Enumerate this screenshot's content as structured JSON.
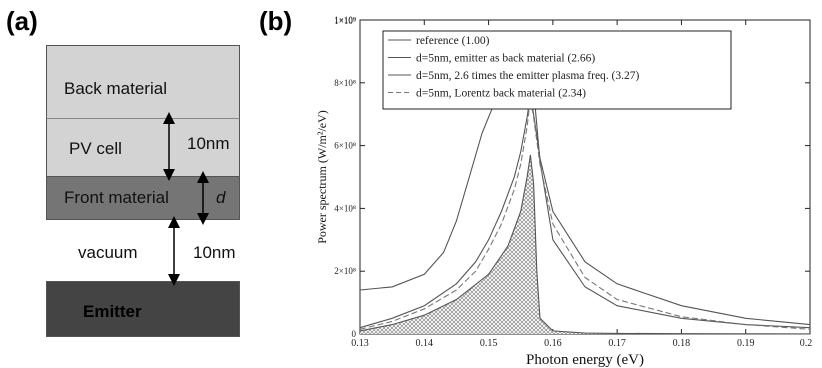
{
  "panel_a": {
    "label": "(a)",
    "layers": {
      "back_material": "Back material",
      "pv_cell": "PV cell",
      "front_material": "Front material",
      "vacuum": "vacuum",
      "emitter": "Emitter"
    },
    "dimensions": {
      "pv_thickness": "10nm",
      "front_thickness": "d",
      "vacuum_gap": "10nm"
    },
    "colors": {
      "back_material": "#d3d3d3",
      "pv_cell": "#d3d3d3",
      "front_material": "#757575",
      "emitter": "#444444"
    }
  },
  "panel_b": {
    "label": "(b)"
  },
  "chart_data": {
    "type": "line",
    "xlabel": "Photon energy (eV)",
    "ylabel": "Power spectrum (W/m²/eV)",
    "xlim": [
      0.13,
      0.2
    ],
    "ylim": [
      0,
      1000000000
    ],
    "x_ticks": [
      "0.13",
      "0.14",
      "0.15",
      "0.16",
      "0.17",
      "0.18",
      "0.19",
      "0.2"
    ],
    "y_ticks": [
      {
        "value": 0,
        "label": "0"
      },
      {
        "value": 200000000,
        "label": "2×10⁸"
      },
      {
        "value": 400000000,
        "label": "4×10⁸"
      },
      {
        "value": 600000000,
        "label": "6×10⁸"
      },
      {
        "value": 800000000,
        "label": "8×10⁸"
      },
      {
        "value": 1000000000,
        "label": "1×10⁹"
      }
    ],
    "top_tick_label": "1×10⁹",
    "legend_position": "top-right",
    "series": [
      {
        "name": "reference (1.00)",
        "style": "solid",
        "color": "#555555",
        "fill_hatched": true,
        "x": [
          0.13,
          0.135,
          0.14,
          0.145,
          0.15,
          0.153,
          0.155,
          0.156,
          0.1565,
          0.157,
          0.1575,
          0.158,
          0.16,
          0.165,
          0.17,
          0.18,
          0.19,
          0.2
        ],
        "y": [
          10000000,
          30000000,
          60000000,
          110000000,
          190000000,
          280000000,
          390000000,
          500000000,
          570000000,
          480000000,
          200000000,
          50000000,
          10000000,
          3000000,
          2000000,
          1000000,
          500000,
          300000
        ]
      },
      {
        "name": "d=5nm, emitter as back material (2.66)",
        "style": "solid",
        "color": "#555555",
        "x": [
          0.13,
          0.135,
          0.14,
          0.143,
          0.145,
          0.147,
          0.149,
          0.151,
          0.153,
          0.155,
          0.156,
          0.1565,
          0.157,
          0.158,
          0.16,
          0.165,
          0.17,
          0.18,
          0.19,
          0.2
        ],
        "y": [
          140000000,
          150000000,
          190000000,
          260000000,
          360000000,
          500000000,
          640000000,
          740000000,
          780000000,
          800000000,
          830000000,
          840000000,
          780000000,
          550000000,
          300000000,
          150000000,
          90000000,
          50000000,
          30000000,
          20000000
        ]
      },
      {
        "name": "d=5nm, 2.6 times the emitter plasma freq. (3.27)",
        "style": "solid",
        "color": "#555555",
        "x": [
          0.13,
          0.135,
          0.14,
          0.145,
          0.148,
          0.15,
          0.152,
          0.154,
          0.155,
          0.156,
          0.1565,
          0.157,
          0.158,
          0.16,
          0.165,
          0.17,
          0.18,
          0.19,
          0.2
        ],
        "y": [
          20000000,
          50000000,
          90000000,
          160000000,
          230000000,
          300000000,
          390000000,
          500000000,
          580000000,
          690000000,
          760000000,
          700000000,
          560000000,
          390000000,
          230000000,
          160000000,
          90000000,
          50000000,
          30000000
        ]
      },
      {
        "name": "d=5nm, Lorentz back material (2.34)",
        "style": "dashed",
        "color": "#777777",
        "x": [
          0.13,
          0.135,
          0.14,
          0.145,
          0.148,
          0.15,
          0.152,
          0.154,
          0.155,
          0.156,
          0.1565,
          0.157,
          0.158,
          0.16,
          0.165,
          0.17,
          0.18,
          0.19,
          0.2
        ],
        "y": [
          15000000,
          40000000,
          80000000,
          140000000,
          200000000,
          270000000,
          350000000,
          460000000,
          540000000,
          660000000,
          750000000,
          690000000,
          540000000,
          350000000,
          180000000,
          110000000,
          55000000,
          30000000,
          15000000
        ]
      }
    ]
  }
}
